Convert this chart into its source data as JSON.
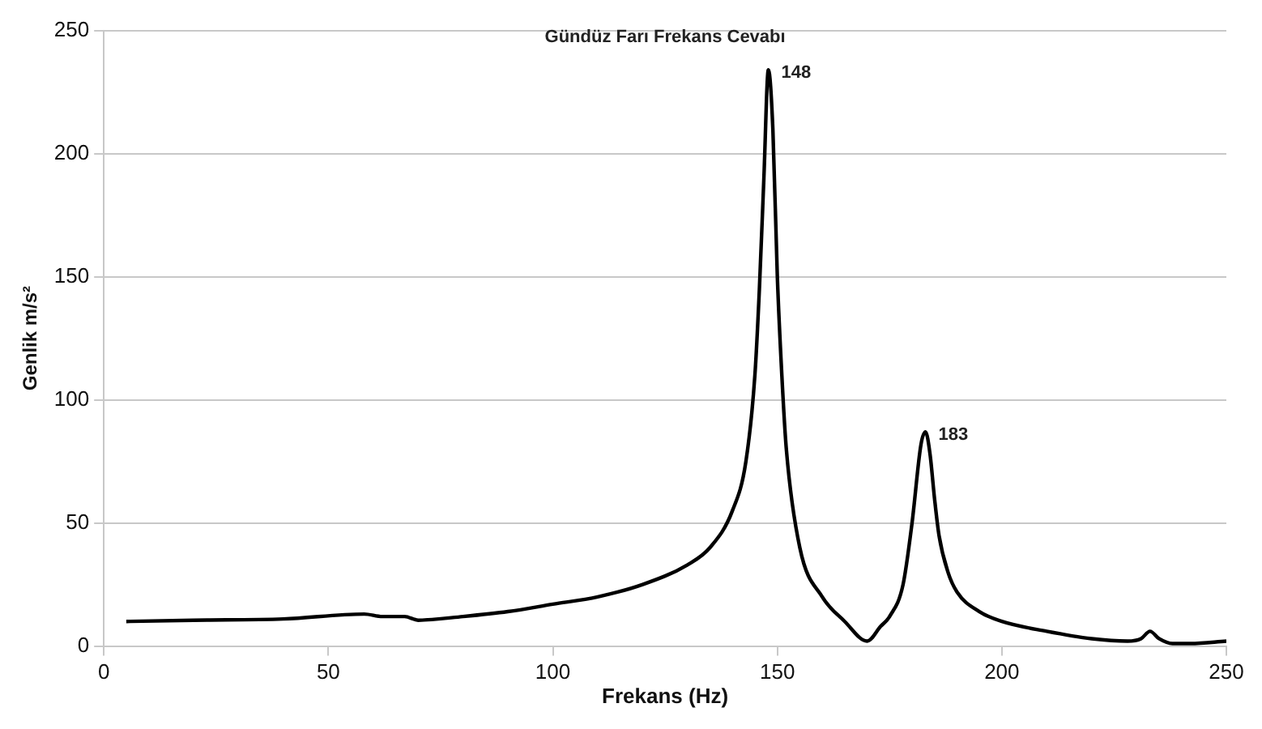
{
  "chart_data": {
    "type": "line",
    "title": "Gündüz Farı Frekans Cevabı",
    "xlabel": "Frekans (Hz)",
    "ylabel": "Genlik m/s²",
    "x": [
      5,
      20,
      40,
      58,
      62,
      67,
      70,
      80,
      90,
      100,
      110,
      120,
      130,
      135,
      140,
      143,
      145,
      146,
      147,
      148,
      149,
      150,
      151,
      152,
      155,
      160,
      165,
      170,
      173,
      175,
      178,
      180,
      182,
      183,
      184,
      185,
      186,
      188,
      190,
      195,
      200,
      210,
      220,
      228,
      231,
      233,
      235,
      238,
      242,
      250
    ],
    "series": [
      {
        "color": "#000000",
        "values": [
          10,
          10.5,
          11,
          13,
          12,
          12,
          10.5,
          12,
          14,
          17,
          20,
          25,
          33,
          40,
          55,
          75,
          110,
          145,
          190,
          234,
          210,
          150,
          110,
          80,
          40,
          20,
          10,
          2,
          8,
          12,
          25,
          50,
          82,
          87,
          78,
          60,
          45,
          30,
          22,
          14,
          10,
          6,
          3,
          2,
          3,
          6,
          3,
          1,
          1,
          2
        ]
      }
    ],
    "xlim": [
      0,
      250
    ],
    "xticks": [
      0,
      50,
      100,
      150,
      200,
      250
    ],
    "ylim": [
      0,
      250
    ],
    "yticks": [
      0,
      50,
      100,
      150,
      200,
      250
    ],
    "grid": "y",
    "legend": false,
    "marker": "none",
    "line_style": "solid",
    "annotations": [
      {
        "text": "148",
        "x": 148,
        "y": 234
      },
      {
        "text": "183",
        "x": 183,
        "y": 87
      }
    ]
  }
}
